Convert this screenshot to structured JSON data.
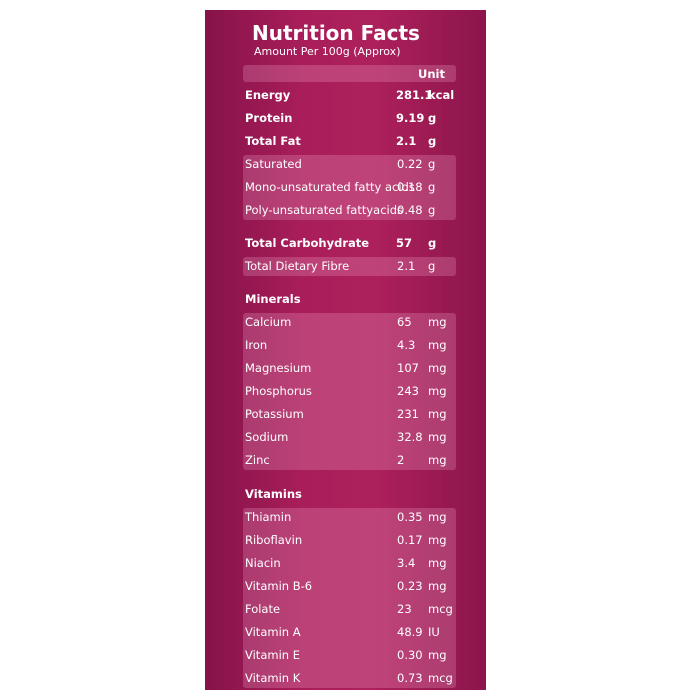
{
  "title": "Nutrition Facts",
  "subtitle": "Amount Per 100g (Approx)",
  "unit_header": "Unit",
  "blocks": [
    {
      "bold": true,
      "boxed": false,
      "rows": [
        [
          "Energy",
          "281.1",
          "kcal"
        ],
        [
          "Protein",
          "9.19",
          "g"
        ],
        [
          "Total Fat",
          "2.1",
          "g"
        ]
      ]
    },
    {
      "bold": false,
      "boxed": true,
      "rows": [
        [
          "Saturated",
          "0.22",
          "g"
        ],
        [
          "Mono-unsaturated fatty acids",
          "0.18",
          "g"
        ],
        [
          "Poly-unsaturated fattyacids",
          "0.48",
          "g"
        ]
      ]
    },
    {
      "bold": true,
      "boxed": false,
      "rows": [
        [
          "Total Carbohydrate",
          "57",
          "g"
        ]
      ]
    },
    {
      "bold": false,
      "boxed": true,
      "rows": [
        [
          "Total Dietary Fibre",
          "2.1",
          "g"
        ]
      ]
    },
    {
      "heading": "Minerals",
      "bold": false,
      "boxed": true,
      "rows": [
        [
          "Calcium",
          "65",
          "mg"
        ],
        [
          "Iron",
          "4.3",
          "mg"
        ],
        [
          "Magnesium",
          "107",
          "mg"
        ],
        [
          "Phosphorus",
          "243",
          "mg"
        ],
        [
          "Potassium",
          "231",
          "mg"
        ],
        [
          "Sodium",
          "32.8",
          "mg"
        ],
        [
          "Zinc",
          "2",
          "mg"
        ]
      ]
    },
    {
      "heading": "Vitamins",
      "bold": false,
      "boxed": true,
      "rows": [
        [
          "Thiamin",
          "0.35",
          "mg"
        ],
        [
          "Riboflavin",
          "0.17",
          "mg"
        ],
        [
          "Niacin",
          "3.4",
          "mg"
        ],
        [
          "Vitamin B-6",
          "0.23",
          "mg"
        ],
        [
          "Folate",
          "23",
          "mcg"
        ],
        [
          "Vitamin A",
          "48.9",
          "IU"
        ],
        [
          "Vitamin E",
          "0.30",
          "mg"
        ],
        [
          "Vitamin K",
          "0.73",
          "mcg"
        ]
      ]
    }
  ]
}
